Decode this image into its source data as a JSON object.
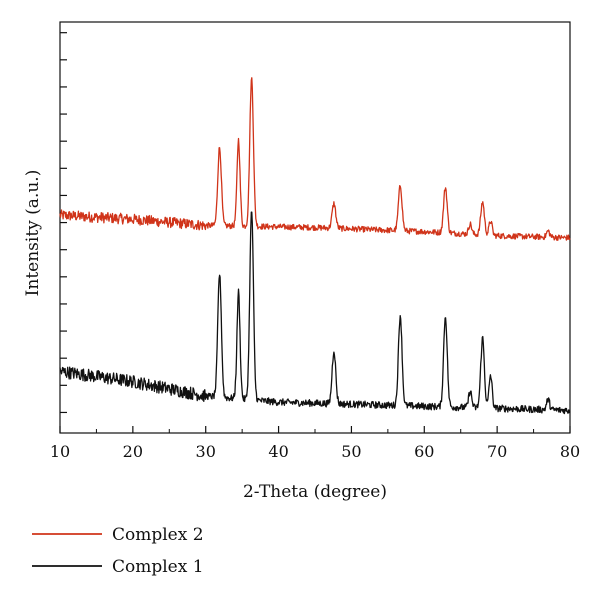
{
  "chart_data": {
    "type": "line",
    "title": "",
    "xlabel": "2-Theta (degree)",
    "ylabel": "Intensity (a.u.)",
    "xlim": [
      10,
      80
    ],
    "ylim": [
      0,
      100
    ],
    "x_ticks": [
      "10",
      "20",
      "30",
      "40",
      "50",
      "60",
      "70",
      "80"
    ],
    "y_ticks_labeled": false,
    "grid": false,
    "legend_position": "bottom-left",
    "series": [
      {
        "name": "Complex 2",
        "color": "#d0341a",
        "offset_index": 1,
        "baseline": [
          [
            10,
            53
          ],
          [
            20,
            52
          ],
          [
            30,
            50.5
          ],
          [
            45,
            50
          ],
          [
            60,
            49
          ],
          [
            70,
            48
          ],
          [
            80,
            47.5
          ]
        ],
        "peaks": [
          {
            "x": 31.9,
            "height": 19,
            "width": 0.35
          },
          {
            "x": 34.5,
            "height": 21,
            "width": 0.3
          },
          {
            "x": 36.3,
            "height": 36,
            "width": 0.35
          },
          {
            "x": 47.6,
            "height": 6,
            "width": 0.35
          },
          {
            "x": 56.7,
            "height": 11,
            "width": 0.35
          },
          {
            "x": 62.9,
            "height": 11,
            "width": 0.35
          },
          {
            "x": 66.3,
            "height": 2.5,
            "width": 0.3
          },
          {
            "x": 68.0,
            "height": 8,
            "width": 0.35
          },
          {
            "x": 69.1,
            "height": 3.5,
            "width": 0.3
          },
          {
            "x": 77.0,
            "height": 1.5,
            "width": 0.3
          }
        ]
      },
      {
        "name": "Complex 1",
        "color": "#111111",
        "offset_index": 0,
        "baseline": [
          [
            10,
            15
          ],
          [
            20,
            12.5
          ],
          [
            30,
            9
          ],
          [
            40,
            7.5
          ],
          [
            50,
            7
          ],
          [
            60,
            6.5
          ],
          [
            70,
            6
          ],
          [
            80,
            5.5
          ]
        ],
        "peaks": [
          {
            "x": 31.9,
            "height": 30,
            "width": 0.35
          },
          {
            "x": 34.5,
            "height": 26,
            "width": 0.3
          },
          {
            "x": 36.3,
            "height": 46,
            "width": 0.35
          },
          {
            "x": 47.6,
            "height": 13,
            "width": 0.35
          },
          {
            "x": 56.7,
            "height": 22,
            "width": 0.35
          },
          {
            "x": 62.9,
            "height": 22,
            "width": 0.35
          },
          {
            "x": 66.3,
            "height": 4,
            "width": 0.3
          },
          {
            "x": 68.0,
            "height": 17,
            "width": 0.35
          },
          {
            "x": 69.1,
            "height": 8,
            "width": 0.3
          },
          {
            "x": 77.0,
            "height": 2.5,
            "width": 0.3
          }
        ]
      }
    ]
  },
  "legend": {
    "items": [
      {
        "label": "Complex 2",
        "color": "#d0341a"
      },
      {
        "label": "Complex 1",
        "color": "#111111"
      }
    ]
  }
}
